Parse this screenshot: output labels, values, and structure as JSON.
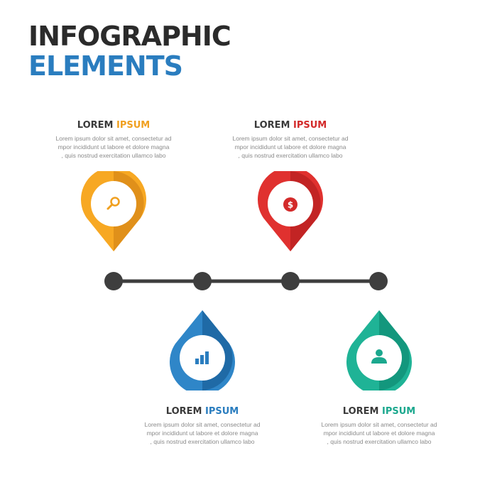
{
  "title": {
    "line1": "INFOGRAPHIC",
    "line2": "ELEMENTS"
  },
  "items": [
    {
      "heading_dark": "LOREM ",
      "heading_accent": "IPSUM",
      "body": [
        "Lorem ipsum dolor sit amet, consectetur ad",
        "mpor incididunt ut labore et dolore magna",
        ", quis nostrud exercitation ullamco labo"
      ],
      "icon": "magnifier-icon",
      "color": "#f0a020"
    },
    {
      "heading_dark": "LOREM ",
      "heading_accent": "IPSUM",
      "body": [
        "Lorem ipsum dolor sit amet, consectetur ad",
        "mpor incididunt ut labore et dolore magna",
        ", quis nostrud exercitation ullamco labo"
      ],
      "icon": "dollar-coin-icon",
      "icon_text": "$",
      "color": "#d32a2a"
    },
    {
      "heading_dark": "LOREM ",
      "heading_accent": "IPSUM",
      "body": [
        "Lorem ipsum dolor sit amet, consectetur ad",
        "mpor incididunt ut labore et dolore magna",
        ", quis nostrud exercitation ullamco labo"
      ],
      "icon": "bar-chart-icon",
      "color": "#2a7dbf"
    },
    {
      "heading_dark": "LOREM ",
      "heading_accent": "IPSUM",
      "body": [
        "Lorem ipsum dolor sit amet, consectetur ad",
        "mpor incididunt ut labore et dolore magna",
        ", quis nostrud exercitation ullamco labo"
      ],
      "icon": "user-icon",
      "color": "#1ba88e"
    }
  ],
  "timeline_color": "#3e3e3e"
}
